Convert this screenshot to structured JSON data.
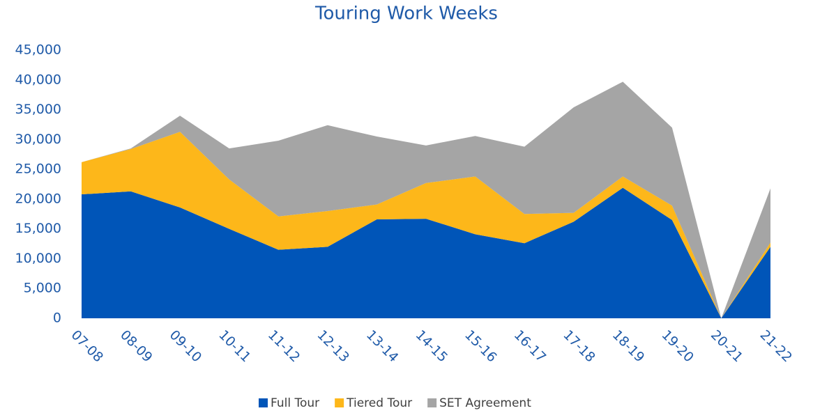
{
  "chart_data": {
    "type": "stacked_area",
    "title": "Touring Work Weeks",
    "categories": [
      "07-08",
      "08-09",
      "09-10",
      "10-11",
      "11-12",
      "12-13",
      "13-14",
      "14-15",
      "15-16",
      "16-17",
      "17-18",
      "18-19",
      "19-20",
      "20-21",
      "21-22"
    ],
    "series": [
      {
        "name": "Full Tour",
        "color": "#0055b8",
        "values": [
          20800,
          21300,
          18600,
          15000,
          11500,
          12000,
          16600,
          16700,
          14100,
          12600,
          16200,
          21900,
          16500,
          0,
          12000
        ]
      },
      {
        "name": "Tiered Tour",
        "color": "#fdb71a",
        "values": [
          5400,
          7100,
          12700,
          8300,
          5600,
          6000,
          2500,
          6000,
          9700,
          4900,
          1500,
          1900,
          2400,
          0,
          700
        ]
      },
      {
        "name": "SET Agreement",
        "color": "#a5a5a5",
        "values": [
          0,
          100,
          2700,
          5200,
          12700,
          14400,
          11400,
          6300,
          6800,
          11300,
          17700,
          15900,
          13100,
          0,
          9100
        ]
      }
    ],
    "ylim": [
      0,
      45000
    ],
    "yticks": [
      0,
      {
        "value": 5000,
        "label": "5,000"
      },
      {
        "value": 10000,
        "label": "10,000"
      },
      {
        "value": 15000,
        "label": "15,000"
      },
      {
        "value": 20000,
        "label": "20,000"
      },
      {
        "value": 25000,
        "label": "25,000"
      },
      {
        "value": 30000,
        "label": "30,000"
      },
      {
        "value": 35000,
        "label": "35,000"
      },
      {
        "value": 40000,
        "label": "40,000"
      },
      {
        "value": 45000,
        "label": "45,000"
      }
    ],
    "legend": "bottom"
  }
}
